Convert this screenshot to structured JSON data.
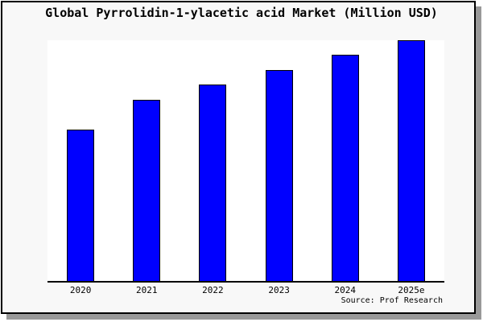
{
  "window": {
    "panel_background": "#f8f8f8",
    "panel_border_color": "#000000",
    "shadow_color": "#999999",
    "plot_background": "#ffffff",
    "axis_color": "#000000",
    "text_color": "#000000"
  },
  "chart_data": {
    "type": "bar",
    "title": "Global Pyrrolidin-1-ylacetic acid Market (Million USD)",
    "categories": [
      "2020",
      "2021",
      "2022",
      "2023",
      "2024",
      "2025e"
    ],
    "values": [
      62.9,
      75.3,
      81.6,
      87.6,
      94.0,
      100.0
    ],
    "value_scale": "relative height, tallest bar (2025e) = 100; no y-axis labels or gridlines shown",
    "xlabel": "",
    "ylabel": "",
    "y_axis_shown": false,
    "gridlines": false,
    "legend": "none",
    "bar_color": "#0000ff",
    "bar_border_color": "#000000",
    "source_label": "Source: Prof Research"
  }
}
